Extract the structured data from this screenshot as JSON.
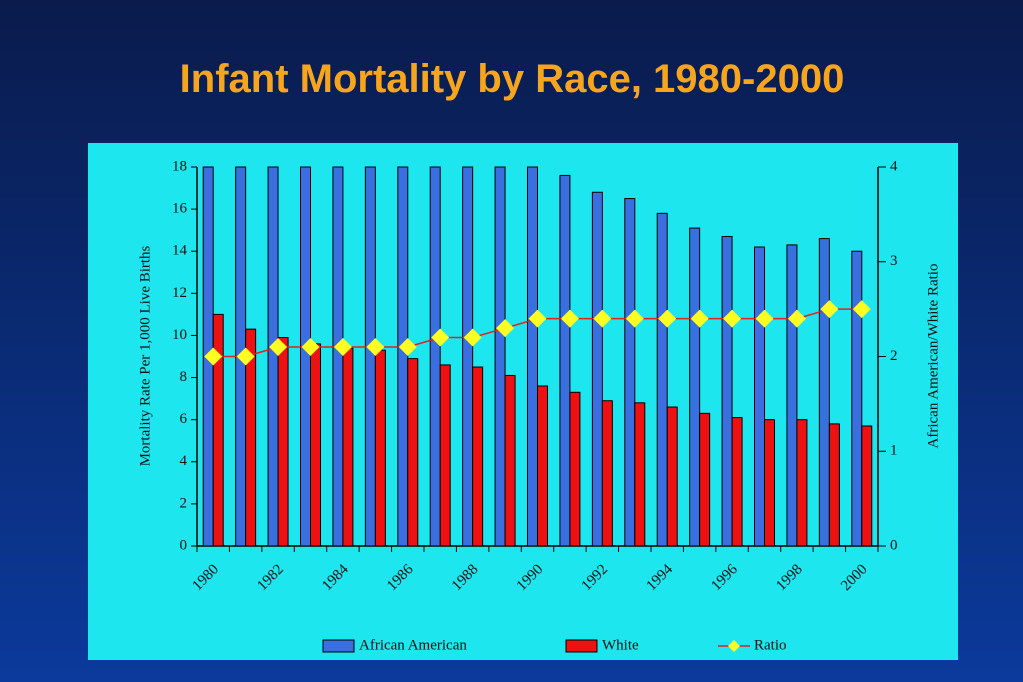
{
  "chart_data": {
    "type": "bar",
    "title": "Infant Mortality by Race, 1980-2000",
    "y_label": "Mortality Rate Per 1,000 Live Births",
    "y2_label": "African American/White Ratio",
    "categories": [
      "1980",
      null,
      "1982",
      null,
      "1984",
      null,
      "1986",
      null,
      "1988",
      null,
      "1990",
      null,
      "1992",
      null,
      "1994",
      null,
      "1996",
      null,
      "1998",
      null,
      "2000"
    ],
    "series": [
      {
        "name": "African American",
        "color": "#3a6fe0",
        "values": [
          18,
          18,
          18,
          18,
          18,
          18,
          18,
          18,
          18,
          18,
          18,
          17.6,
          16.8,
          16.5,
          15.8,
          15.1,
          14.7,
          14.2,
          14.3,
          14.6,
          14.0
        ]
      },
      {
        "name": "White",
        "color": "#ee1111",
        "values": [
          11.0,
          10.3,
          9.9,
          9.6,
          9.4,
          9.3,
          8.9,
          8.6,
          8.5,
          8.1,
          7.6,
          7.3,
          6.9,
          6.8,
          6.6,
          6.3,
          6.1,
          6.0,
          6.0,
          5.8,
          5.7
        ]
      },
      {
        "name": "Ratio",
        "type": "line",
        "axis": "y2",
        "color": "#dd2222",
        "marker_color": "#ffff22",
        "values": [
          2.0,
          2.0,
          2.1,
          2.1,
          2.1,
          2.1,
          2.1,
          2.2,
          2.2,
          2.3,
          2.4,
          2.4,
          2.4,
          2.4,
          2.4,
          2.4,
          2.4,
          2.4,
          2.4,
          2.5,
          2.5
        ]
      }
    ],
    "ylim": [
      0,
      18
    ],
    "yticks": [
      0,
      2,
      4,
      6,
      8,
      10,
      12,
      14,
      16,
      18
    ],
    "y2lim": [
      0,
      4
    ],
    "y2ticks": [
      0,
      1,
      2,
      3,
      4
    ],
    "legend": "bottom"
  }
}
